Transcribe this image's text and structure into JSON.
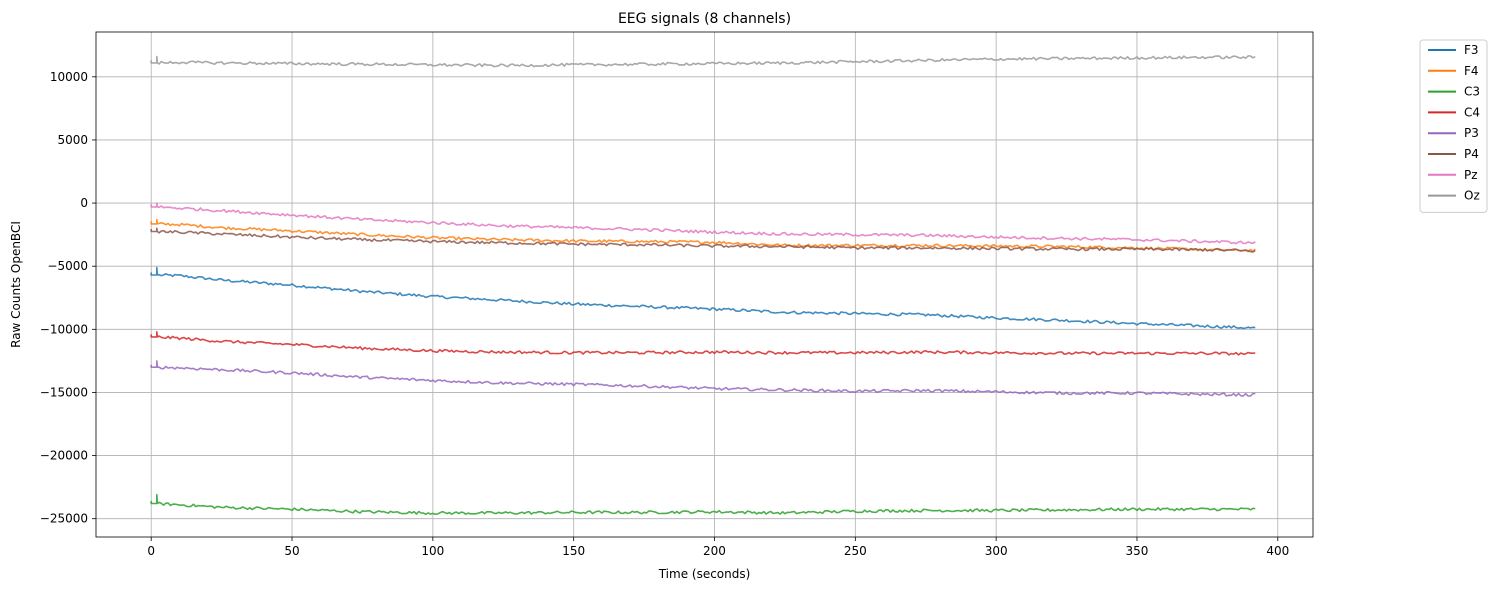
{
  "chart_data": {
    "type": "line",
    "title": "EEG signals (8 channels)",
    "xlabel": "Time (seconds)",
    "ylabel": "Raw Counts OpenBCI",
    "xlim": [
      -19.6,
      412.5
    ],
    "ylim": [
      -26450,
      13550
    ],
    "xticks": [
      0,
      50,
      100,
      150,
      200,
      250,
      300,
      350,
      400
    ],
    "yticks": [
      -25000,
      -20000,
      -15000,
      -10000,
      -5000,
      0,
      5000,
      10000
    ],
    "grid": true,
    "legend": "outside-top-right",
    "series": [
      {
        "name": "F3",
        "color": "#1f77b4",
        "start": 0,
        "spike": -5100,
        "points": [
          [
            2,
            -5700
          ],
          [
            10,
            -5750
          ],
          [
            25,
            -6100
          ],
          [
            50,
            -6500
          ],
          [
            75,
            -7000
          ],
          [
            100,
            -7400
          ],
          [
            125,
            -7700
          ],
          [
            150,
            -8000
          ],
          [
            175,
            -8200
          ],
          [
            200,
            -8400
          ],
          [
            225,
            -8650
          ],
          [
            250,
            -8750
          ],
          [
            275,
            -8850
          ],
          [
            300,
            -9100
          ],
          [
            325,
            -9300
          ],
          [
            350,
            -9550
          ],
          [
            375,
            -9750
          ],
          [
            392,
            -9900
          ]
        ]
      },
      {
        "name": "F4",
        "color": "#ff7f0e",
        "start": 0,
        "spike": -1300,
        "points": [
          [
            2,
            -1650
          ],
          [
            10,
            -1700
          ],
          [
            25,
            -1950
          ],
          [
            50,
            -2200
          ],
          [
            75,
            -2500
          ],
          [
            100,
            -2750
          ],
          [
            125,
            -2900
          ],
          [
            150,
            -3000
          ],
          [
            175,
            -3050
          ],
          [
            200,
            -3100
          ],
          [
            225,
            -3350
          ],
          [
            250,
            -3350
          ],
          [
            275,
            -3350
          ],
          [
            300,
            -3400
          ],
          [
            325,
            -3450
          ],
          [
            350,
            -3550
          ],
          [
            375,
            -3700
          ],
          [
            392,
            -3750
          ]
        ]
      },
      {
        "name": "C3",
        "color": "#2ca02c",
        "start": 0,
        "spike": -23100,
        "points": [
          [
            2,
            -23800
          ],
          [
            10,
            -23900
          ],
          [
            25,
            -24100
          ],
          [
            50,
            -24250
          ],
          [
            75,
            -24450
          ],
          [
            100,
            -24550
          ],
          [
            125,
            -24550
          ],
          [
            150,
            -24500
          ],
          [
            175,
            -24500
          ],
          [
            200,
            -24450
          ],
          [
            225,
            -24550
          ],
          [
            250,
            -24400
          ],
          [
            275,
            -24350
          ],
          [
            300,
            -24350
          ],
          [
            325,
            -24300
          ],
          [
            350,
            -24250
          ],
          [
            375,
            -24250
          ],
          [
            392,
            -24250
          ]
        ]
      },
      {
        "name": "C4",
        "color": "#d62728",
        "start": 0,
        "spike": -10200,
        "points": [
          [
            2,
            -10600
          ],
          [
            10,
            -10700
          ],
          [
            25,
            -10950
          ],
          [
            50,
            -11200
          ],
          [
            75,
            -11500
          ],
          [
            100,
            -11700
          ],
          [
            125,
            -11800
          ],
          [
            150,
            -11850
          ],
          [
            175,
            -11850
          ],
          [
            200,
            -11800
          ],
          [
            225,
            -11850
          ],
          [
            250,
            -11850
          ],
          [
            275,
            -11800
          ],
          [
            300,
            -11850
          ],
          [
            325,
            -11900
          ],
          [
            350,
            -11900
          ],
          [
            375,
            -11900
          ],
          [
            392,
            -11950
          ]
        ]
      },
      {
        "name": "P3",
        "color": "#9467bd",
        "start": 0,
        "spike": -12500,
        "points": [
          [
            2,
            -13000
          ],
          [
            10,
            -13050
          ],
          [
            25,
            -13200
          ],
          [
            50,
            -13450
          ],
          [
            75,
            -13800
          ],
          [
            100,
            -14050
          ],
          [
            125,
            -14250
          ],
          [
            150,
            -14350
          ],
          [
            175,
            -14500
          ],
          [
            200,
            -14700
          ],
          [
            225,
            -14800
          ],
          [
            250,
            -14900
          ],
          [
            275,
            -14850
          ],
          [
            300,
            -14950
          ],
          [
            325,
            -15050
          ],
          [
            350,
            -15050
          ],
          [
            375,
            -15150
          ],
          [
            392,
            -15200
          ]
        ]
      },
      {
        "name": "P4",
        "color": "#8c564b",
        "start": 0,
        "spike": -2000,
        "points": [
          [
            2,
            -2250
          ],
          [
            10,
            -2300
          ],
          [
            25,
            -2450
          ],
          [
            50,
            -2700
          ],
          [
            75,
            -2900
          ],
          [
            100,
            -3050
          ],
          [
            125,
            -3150
          ],
          [
            150,
            -3250
          ],
          [
            175,
            -3300
          ],
          [
            200,
            -3400
          ],
          [
            225,
            -3450
          ],
          [
            250,
            -3550
          ],
          [
            275,
            -3550
          ],
          [
            300,
            -3600
          ],
          [
            325,
            -3650
          ],
          [
            350,
            -3650
          ],
          [
            375,
            -3700
          ],
          [
            392,
            -3800
          ]
        ]
      },
      {
        "name": "Pz",
        "color": "#e377c2",
        "start": 0,
        "spike": 0,
        "points": [
          [
            2,
            -300
          ],
          [
            10,
            -400
          ],
          [
            25,
            -600
          ],
          [
            50,
            -950
          ],
          [
            75,
            -1300
          ],
          [
            100,
            -1550
          ],
          [
            125,
            -1800
          ],
          [
            150,
            -1950
          ],
          [
            175,
            -2100
          ],
          [
            200,
            -2300
          ],
          [
            225,
            -2450
          ],
          [
            250,
            -2500
          ],
          [
            275,
            -2550
          ],
          [
            300,
            -2700
          ],
          [
            325,
            -2800
          ],
          [
            350,
            -2900
          ],
          [
            375,
            -3050
          ],
          [
            392,
            -3150
          ]
        ]
      },
      {
        "name": "Oz",
        "color": "#999999",
        "start": 0,
        "spike": 11600,
        "points": [
          [
            2,
            11100
          ],
          [
            10,
            11150
          ],
          [
            25,
            11100
          ],
          [
            50,
            11050
          ],
          [
            75,
            11000
          ],
          [
            100,
            10950
          ],
          [
            125,
            10900
          ],
          [
            150,
            10950
          ],
          [
            175,
            11000
          ],
          [
            200,
            11050
          ],
          [
            225,
            11100
          ],
          [
            250,
            11200
          ],
          [
            275,
            11300
          ],
          [
            300,
            11400
          ],
          [
            325,
            11450
          ],
          [
            350,
            11500
          ],
          [
            375,
            11550
          ],
          [
            392,
            11550
          ]
        ]
      }
    ]
  }
}
